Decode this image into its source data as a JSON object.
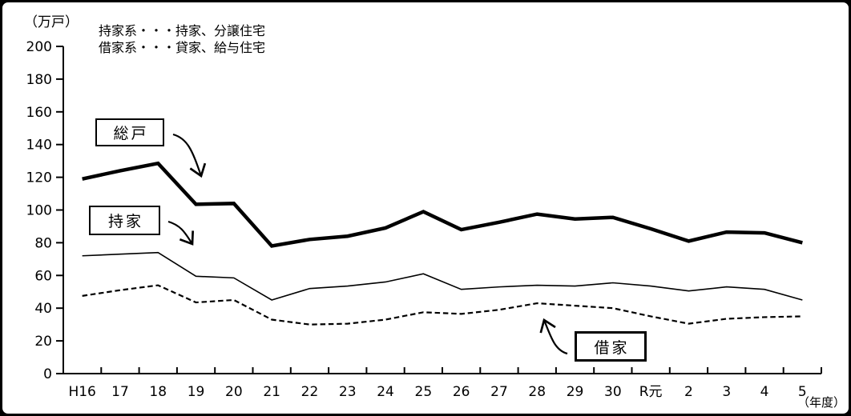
{
  "labels": {
    "unit": "（万戸）",
    "x_unit": "（年度）",
    "note_line1": "持家系・・・持家、分譲住宅",
    "note_line2": "借家系・・・貸家、給与住宅"
  },
  "chart_data": {
    "type": "line",
    "title": "",
    "xlabel": "（年度）",
    "ylabel": "（万戸）",
    "ylim": [
      0,
      200
    ],
    "y_ticks": [
      0,
      20,
      40,
      60,
      80,
      100,
      120,
      140,
      160,
      180,
      200
    ],
    "grid": false,
    "legend_position": "none",
    "notes": [
      "持家系・・・持家、分譲住宅",
      "借家系・・・貸家、給与住宅"
    ],
    "categories": [
      "H16",
      "17",
      "18",
      "19",
      "20",
      "21",
      "22",
      "23",
      "24",
      "25",
      "26",
      "27",
      "28",
      "29",
      "30",
      "R元",
      "2",
      "3",
      "4",
      "5"
    ],
    "series": [
      {
        "name": "総戸",
        "style": "thick-solid",
        "values": [
          119,
          124,
          128.5,
          103.5,
          104,
          78,
          82,
          84,
          89,
          99,
          88,
          92.5,
          97.5,
          94.5,
          95.5,
          88.5,
          81,
          86.5,
          86,
          80
        ]
      },
      {
        "name": "持家",
        "style": "thin-solid",
        "values": [
          72,
          73,
          74,
          59.5,
          58.5,
          45,
          52,
          53.5,
          56,
          61,
          51.5,
          53,
          54,
          53.5,
          55.5,
          53.5,
          50.5,
          53,
          51.5,
          45
        ]
      },
      {
        "name": "借家",
        "style": "dashed",
        "values": [
          47.5,
          51,
          54,
          43.5,
          45,
          33,
          30,
          30.5,
          33,
          37.5,
          36.5,
          39,
          43,
          41.5,
          40,
          35,
          30.5,
          33.5,
          34.5,
          35
        ]
      }
    ],
    "colors": {
      "line": "#000000",
      "background": "#ffffff"
    }
  }
}
